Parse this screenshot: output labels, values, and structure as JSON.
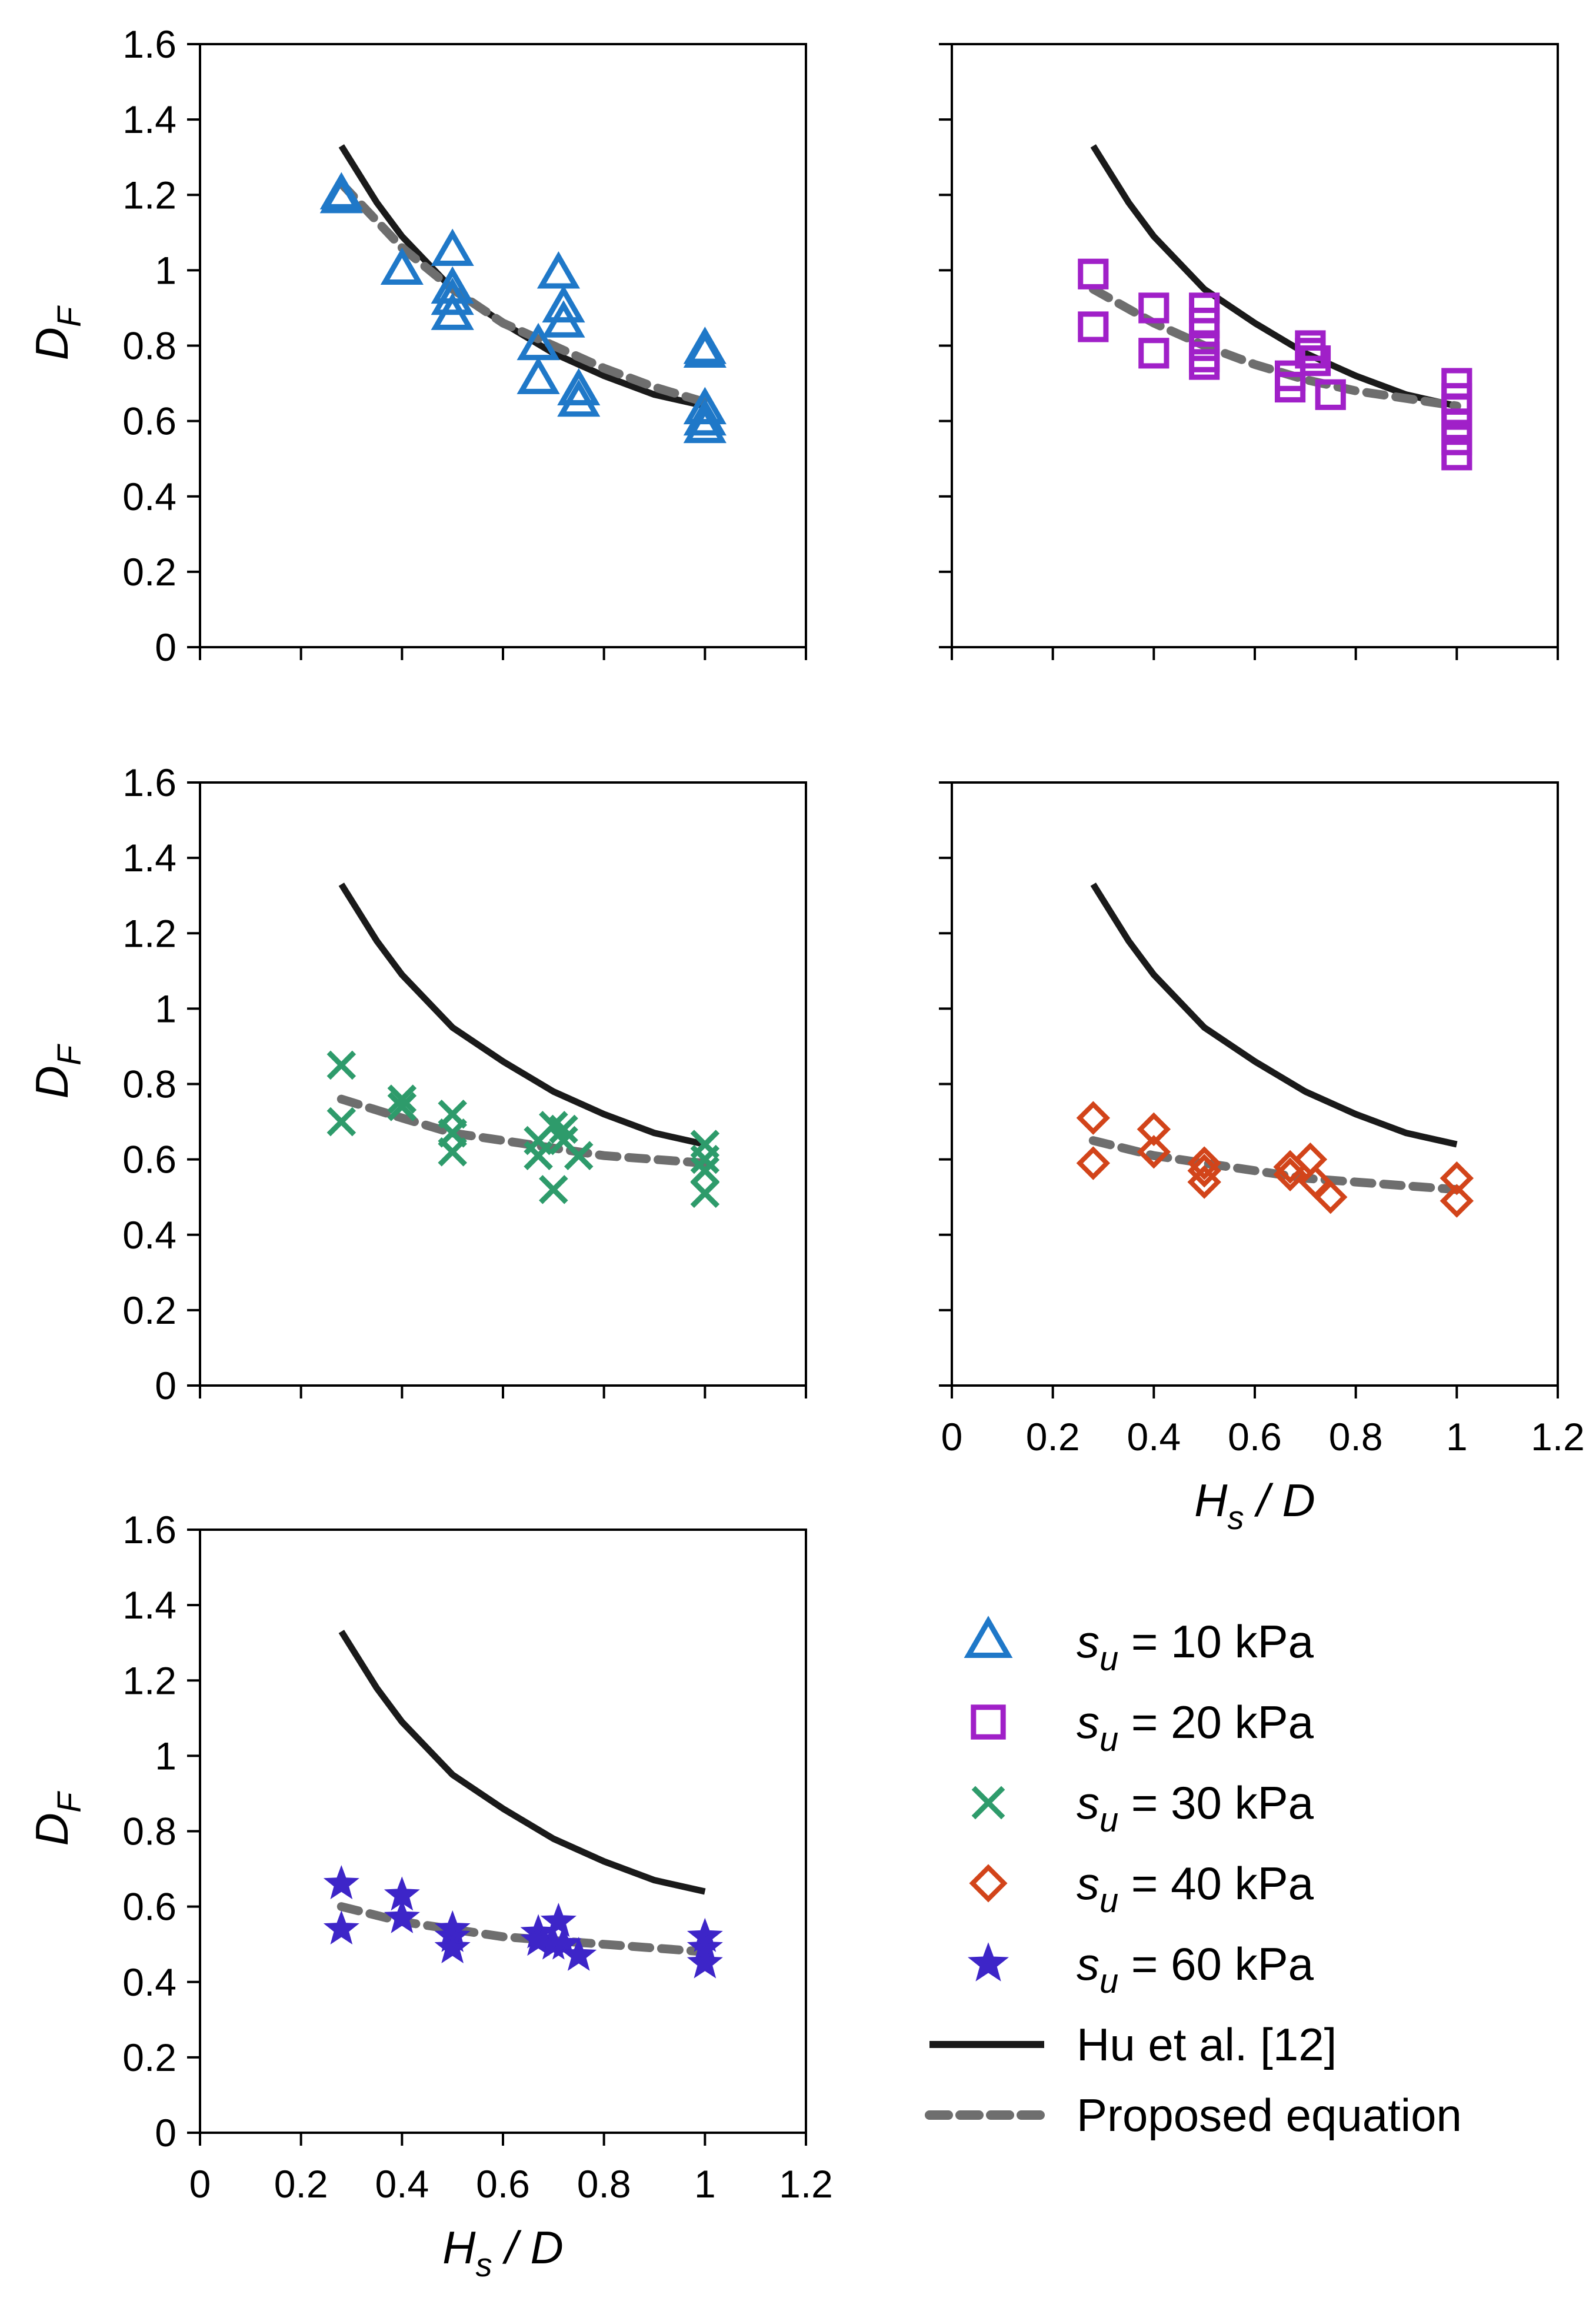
{
  "chart_data": {
    "type": "scatter",
    "x_label": {
      "main": "H",
      "sub": "s",
      "rest": " / D"
    },
    "y_label": {
      "main": "D",
      "sub": "F"
    },
    "xlim": [
      0,
      1.2
    ],
    "ylim": [
      0,
      1.6
    ],
    "x_ticks": [
      "0",
      "0.2",
      "0.4",
      "0.6",
      "0.8",
      "1",
      "1.2"
    ],
    "y_ticks": [
      "0",
      "0.2",
      "0.4",
      "0.6",
      "0.8",
      "1",
      "1.2",
      "1.4",
      "1.6"
    ],
    "hu_curve": {
      "name": "Hu et al. [12]",
      "color": "#1a1a1a",
      "x": [
        0.28,
        0.35,
        0.4,
        0.5,
        0.6,
        0.7,
        0.8,
        0.9,
        1.0
      ],
      "y": [
        1.33,
        1.18,
        1.09,
        0.95,
        0.86,
        0.78,
        0.72,
        0.67,
        0.64
      ]
    },
    "proposed_label": "Proposed equation",
    "proposed_color": "#6e6e6e",
    "panels": [
      {
        "id": "su10",
        "name": "s",
        "sub": "u",
        "value_text": " = 10 kPa",
        "marker": "triangle",
        "color": "#1f78c8",
        "proposed": {
          "x": [
            0.28,
            0.4,
            0.5,
            0.6,
            0.7,
            0.8,
            0.9,
            1.0
          ],
          "y": [
            1.23,
            1.06,
            0.95,
            0.86,
            0.8,
            0.74,
            0.69,
            0.65
          ]
        },
        "points": [
          [
            0.28,
            1.19
          ],
          [
            0.28,
            1.2
          ],
          [
            0.4,
            1.0
          ],
          [
            0.5,
            1.05
          ],
          [
            0.5,
            0.95
          ],
          [
            0.5,
            0.92
          ],
          [
            0.5,
            0.88
          ],
          [
            0.67,
            0.8
          ],
          [
            0.67,
            0.71
          ],
          [
            0.71,
            0.99
          ],
          [
            0.72,
            0.9
          ],
          [
            0.72,
            0.86
          ],
          [
            0.75,
            0.68
          ],
          [
            0.75,
            0.65
          ],
          [
            1.0,
            0.79
          ],
          [
            1.0,
            0.78
          ],
          [
            1.0,
            0.63
          ],
          [
            1.0,
            0.6
          ],
          [
            1.0,
            0.58
          ]
        ]
      },
      {
        "id": "su20",
        "name": "s",
        "sub": "u",
        "value_text": " = 20 kPa",
        "marker": "square",
        "color": "#a020c8",
        "proposed": {
          "x": [
            0.28,
            0.4,
            0.5,
            0.6,
            0.7,
            0.8,
            0.9,
            1.0
          ],
          "y": [
            0.95,
            0.86,
            0.8,
            0.75,
            0.71,
            0.68,
            0.66,
            0.64
          ]
        },
        "points": [
          [
            0.28,
            0.99
          ],
          [
            0.28,
            0.85
          ],
          [
            0.4,
            0.9
          ],
          [
            0.4,
            0.78
          ],
          [
            0.5,
            0.9
          ],
          [
            0.5,
            0.86
          ],
          [
            0.5,
            0.8
          ],
          [
            0.5,
            0.77
          ],
          [
            0.5,
            0.75
          ],
          [
            0.67,
            0.72
          ],
          [
            0.67,
            0.69
          ],
          [
            0.71,
            0.8
          ],
          [
            0.71,
            0.78
          ],
          [
            0.72,
            0.76
          ],
          [
            0.75,
            0.67
          ],
          [
            1.0,
            0.7
          ],
          [
            1.0,
            0.66
          ],
          [
            1.0,
            0.63
          ],
          [
            1.0,
            0.59
          ],
          [
            1.0,
            0.55
          ],
          [
            1.0,
            0.51
          ]
        ]
      },
      {
        "id": "su30",
        "name": "s",
        "sub": "u",
        "value_text": " = 30 kPa",
        "marker": "cross",
        "color": "#2e9b6b",
        "proposed": {
          "x": [
            0.28,
            0.4,
            0.5,
            0.6,
            0.7,
            0.8,
            0.9,
            1.0
          ],
          "y": [
            0.76,
            0.71,
            0.67,
            0.65,
            0.63,
            0.61,
            0.6,
            0.59
          ]
        },
        "points": [
          [
            0.28,
            0.85
          ],
          [
            0.28,
            0.7
          ],
          [
            0.4,
            0.76
          ],
          [
            0.4,
            0.74
          ],
          [
            0.5,
            0.72
          ],
          [
            0.5,
            0.67
          ],
          [
            0.5,
            0.62
          ],
          [
            0.67,
            0.65
          ],
          [
            0.67,
            0.61
          ],
          [
            0.7,
            0.69
          ],
          [
            0.7,
            0.52
          ],
          [
            0.72,
            0.68
          ],
          [
            0.72,
            0.65
          ],
          [
            0.75,
            0.61
          ],
          [
            1.0,
            0.64
          ],
          [
            1.0,
            0.6
          ],
          [
            1.0,
            0.57
          ],
          [
            1.0,
            0.51
          ]
        ]
      },
      {
        "id": "su40",
        "name": "s",
        "sub": "u",
        "value_text": " = 40 kPa",
        "marker": "diamond",
        "color": "#d2441a",
        "proposed": {
          "x": [
            0.28,
            0.4,
            0.5,
            0.6,
            0.7,
            0.8,
            0.9,
            1.0
          ],
          "y": [
            0.65,
            0.61,
            0.59,
            0.57,
            0.55,
            0.54,
            0.53,
            0.52
          ]
        },
        "points": [
          [
            0.28,
            0.71
          ],
          [
            0.28,
            0.59
          ],
          [
            0.4,
            0.68
          ],
          [
            0.4,
            0.62
          ],
          [
            0.5,
            0.59
          ],
          [
            0.5,
            0.57
          ],
          [
            0.5,
            0.54
          ],
          [
            0.67,
            0.58
          ],
          [
            0.67,
            0.56
          ],
          [
            0.71,
            0.6
          ],
          [
            0.72,
            0.54
          ],
          [
            0.75,
            0.5
          ],
          [
            1.0,
            0.55
          ],
          [
            1.0,
            0.49
          ]
        ]
      },
      {
        "id": "su60",
        "name": "s",
        "sub": "u",
        "value_text": " = 60 kPa",
        "marker": "star",
        "color": "#3d25c8",
        "proposed": {
          "x": [
            0.28,
            0.4,
            0.5,
            0.6,
            0.7,
            0.8,
            0.9,
            1.0
          ],
          "y": [
            0.6,
            0.56,
            0.54,
            0.52,
            0.51,
            0.5,
            0.49,
            0.48
          ]
        },
        "points": [
          [
            0.28,
            0.66
          ],
          [
            0.28,
            0.54
          ],
          [
            0.4,
            0.63
          ],
          [
            0.4,
            0.57
          ],
          [
            0.5,
            0.54
          ],
          [
            0.5,
            0.52
          ],
          [
            0.5,
            0.49
          ],
          [
            0.67,
            0.53
          ],
          [
            0.67,
            0.51
          ],
          [
            0.7,
            0.5
          ],
          [
            0.71,
            0.56
          ],
          [
            0.72,
            0.5
          ],
          [
            0.75,
            0.47
          ],
          [
            1.0,
            0.52
          ],
          [
            1.0,
            0.49
          ],
          [
            1.0,
            0.45
          ]
        ]
      }
    ]
  }
}
